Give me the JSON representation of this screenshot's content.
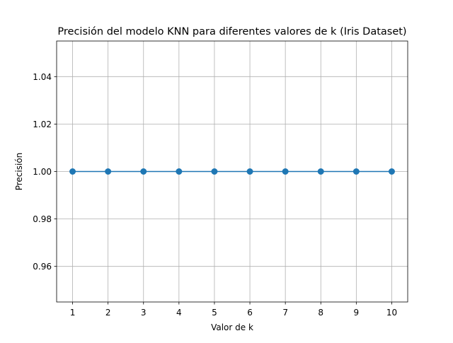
{
  "chart_data": {
    "type": "line",
    "title": "Precisión del modelo KNN para diferentes valores de k (Iris Dataset)",
    "xlabel": "Valor de k",
    "ylabel": "Precisión",
    "x": [
      1,
      2,
      3,
      4,
      5,
      6,
      7,
      8,
      9,
      10
    ],
    "series": [
      {
        "values": [
          1.0,
          1.0,
          1.0,
          1.0,
          1.0,
          1.0,
          1.0,
          1.0,
          1.0,
          1.0
        ]
      }
    ],
    "xlim": [
      0.55,
      10.45
    ],
    "ylim": [
      0.945,
      1.055
    ],
    "xticks": [
      "1",
      "2",
      "3",
      "4",
      "5",
      "6",
      "7",
      "8",
      "9",
      "10"
    ],
    "yticks": [
      "0.96",
      "0.98",
      "1.00",
      "1.02",
      "1.04"
    ],
    "grid": true,
    "marker": "circle",
    "colors": {
      "series": "#1f77b4",
      "grid": "#b0b0b0",
      "axes": "#000000"
    }
  }
}
